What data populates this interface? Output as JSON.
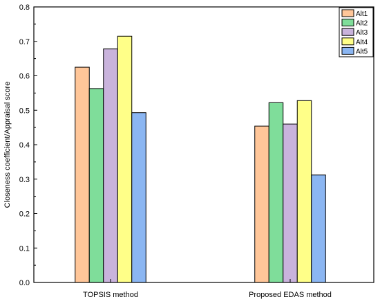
{
  "chart_data": {
    "type": "bar",
    "categories": [
      "TOPSIS method",
      "Proposed EDAS method"
    ],
    "series": [
      {
        "name": "Alt1",
        "color": "#FFC699",
        "values": [
          0.625,
          0.454
        ]
      },
      {
        "name": "Alt2",
        "color": "#7FDD9A",
        "values": [
          0.563,
          0.522
        ]
      },
      {
        "name": "Alt3",
        "color": "#C9B3DC",
        "values": [
          0.678,
          0.46
        ]
      },
      {
        "name": "Alt4",
        "color": "#FFFF88",
        "values": [
          0.715,
          0.528
        ]
      },
      {
        "name": "Alt5",
        "color": "#8BB6F2",
        "values": [
          0.493,
          0.312
        ]
      }
    ],
    "ylabel": "Closeness coefficient/Appraisal score",
    "xlabel": "",
    "ylim": [
      0,
      0.8
    ],
    "yticks": [
      "0.0",
      "0.1",
      "0.2",
      "0.3",
      "0.4",
      "0.5",
      "0.6",
      "0.7",
      "0.8"
    ],
    "grid": false,
    "legend_position": "top-right"
  }
}
